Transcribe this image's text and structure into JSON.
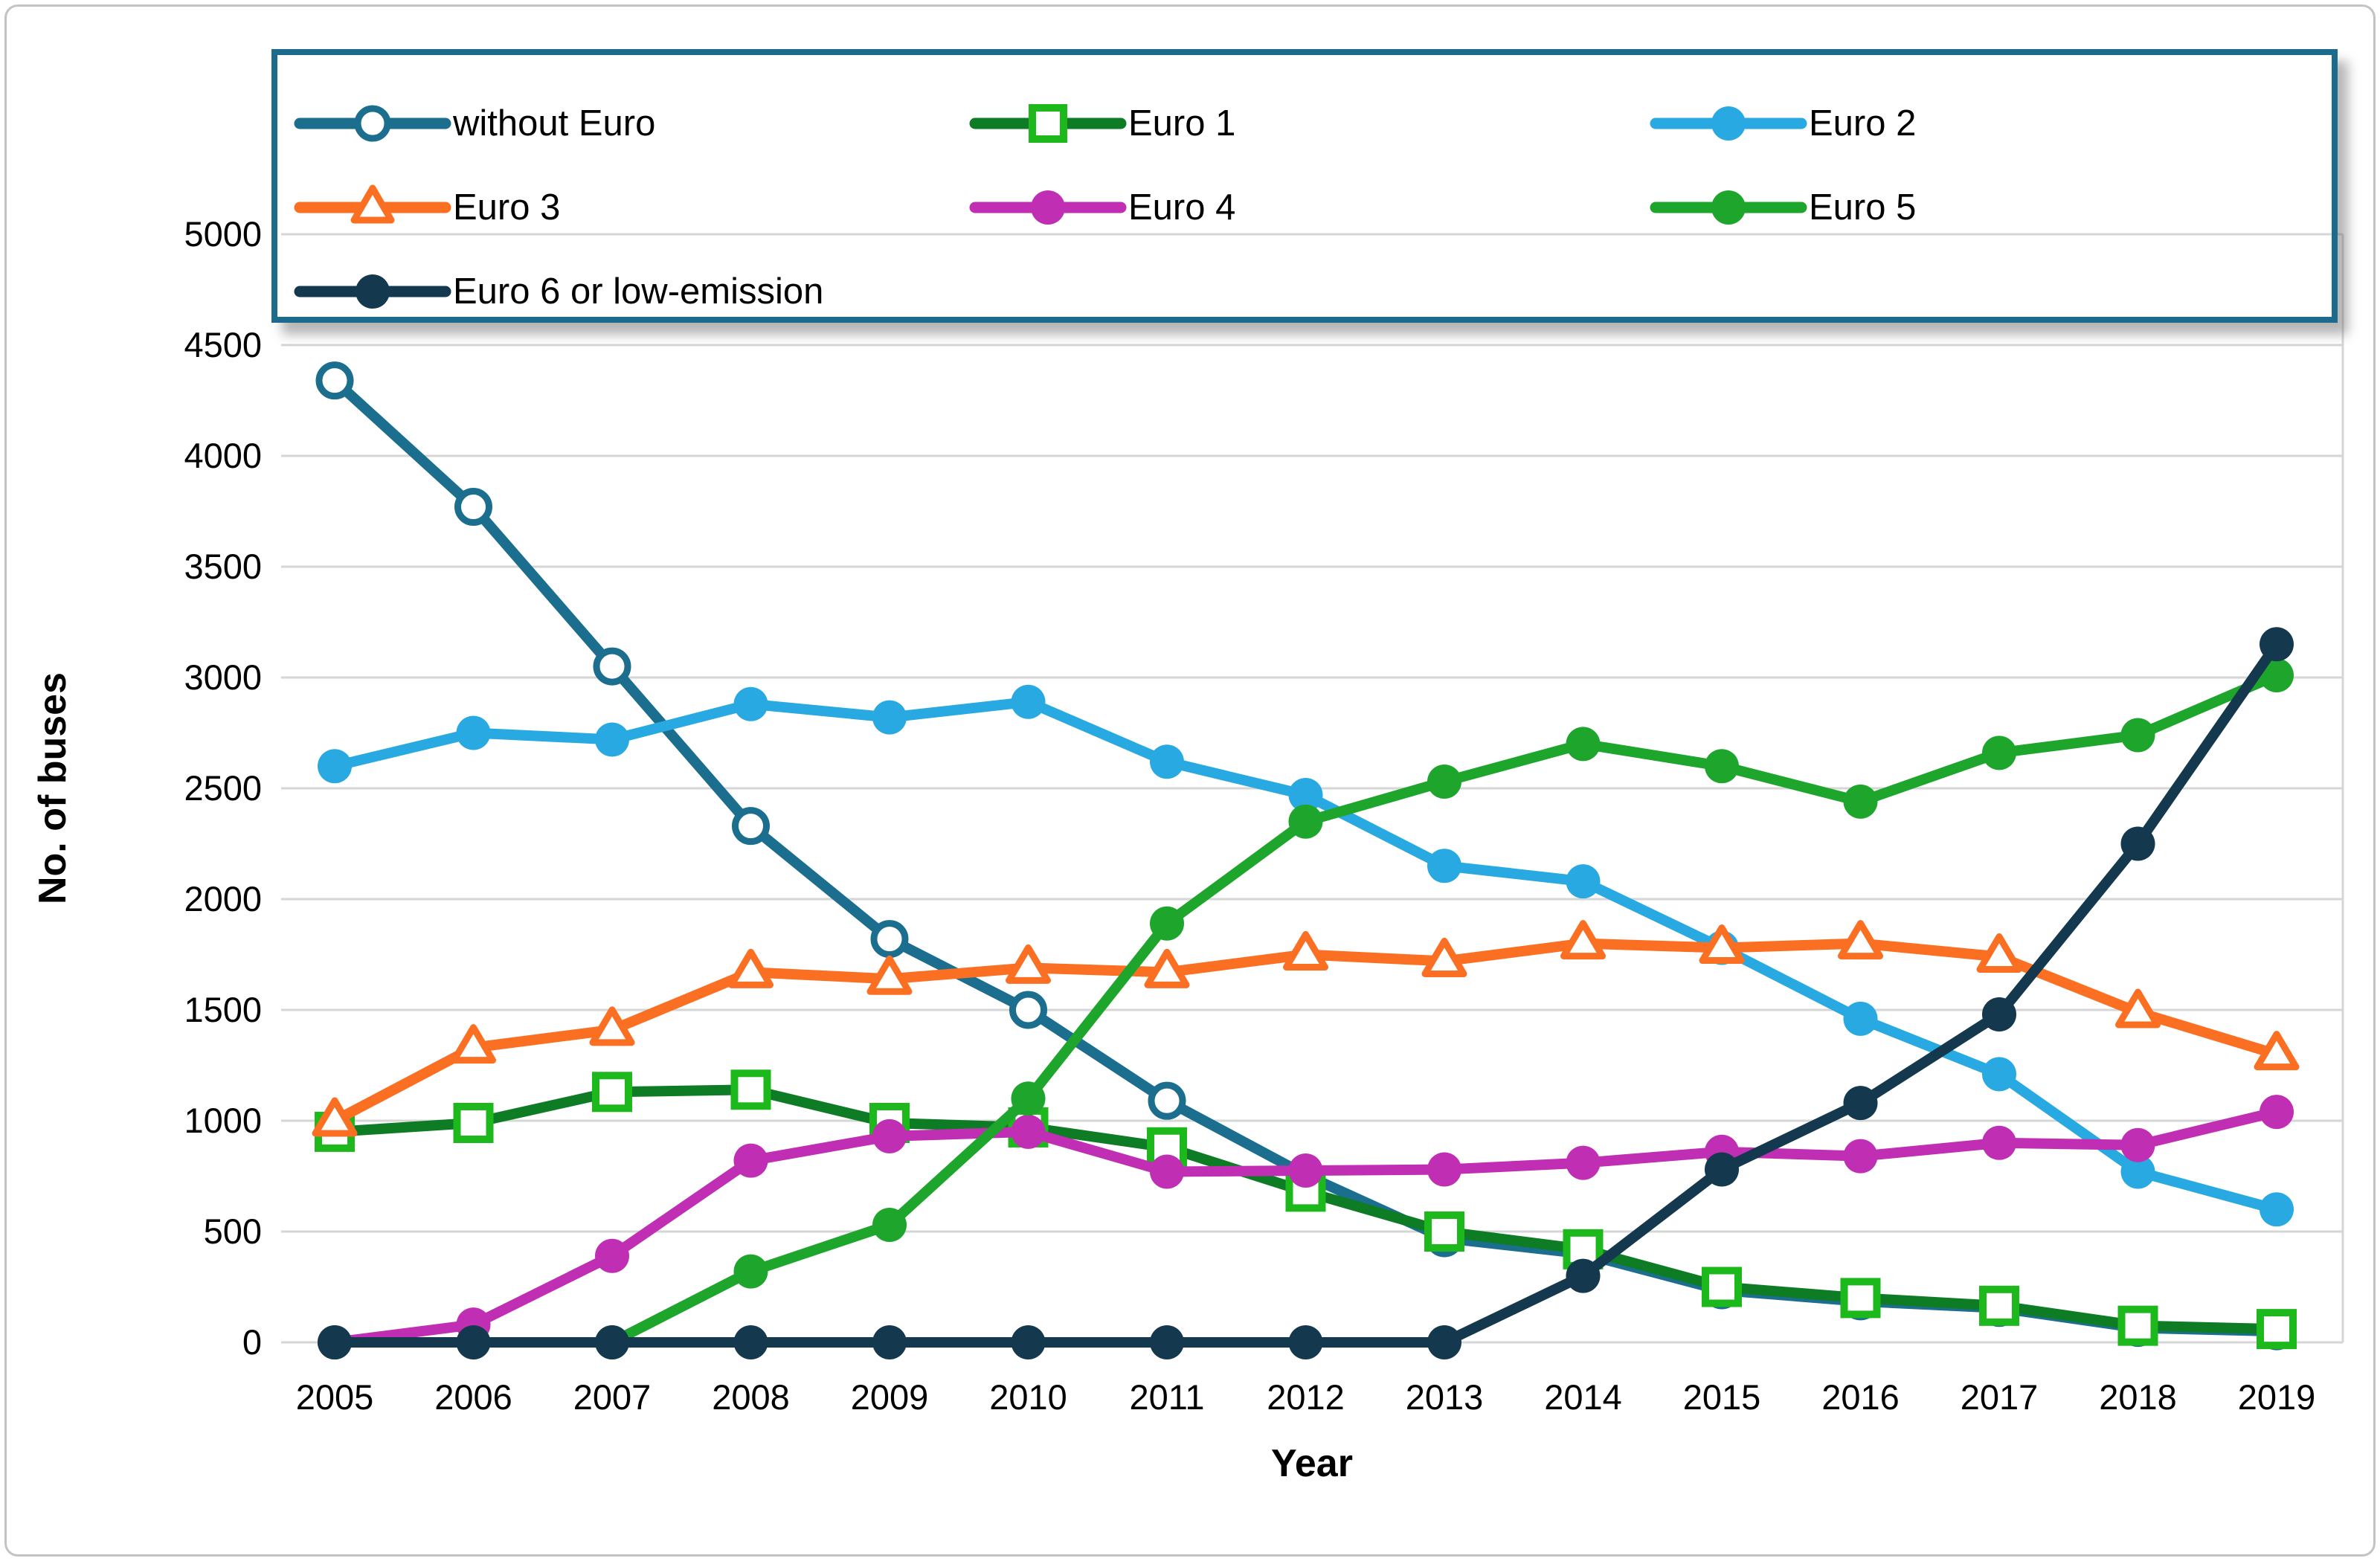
{
  "figure": {
    "type_note": "line chart figure",
    "background": "#ffffff",
    "frame_border_color": "#c3c3c3",
    "legend_border_color": "#1d6b8c",
    "gridline_color": "#d6d6d6"
  },
  "axes": {
    "y_title": "No. of buses",
    "x_title": "Year",
    "y_ticks": [
      0,
      500,
      1000,
      1500,
      2000,
      2500,
      3000,
      3500,
      4000,
      4500,
      5000
    ],
    "x_ticks": [
      "2005",
      "2006",
      "2007",
      "2008",
      "2009",
      "2010",
      "2011",
      "2012",
      "2013",
      "2014",
      "2015",
      "2016",
      "2017",
      "2018",
      "2019"
    ]
  },
  "chart_data": {
    "type": "line",
    "title": "",
    "xlabel": "Year",
    "ylabel": "No. of buses",
    "ylim": [
      0,
      5000
    ],
    "grid": "horizontal",
    "legend_position": "top-inside-bordered-box",
    "categories": [
      2005,
      2006,
      2007,
      2008,
      2009,
      2010,
      2011,
      2012,
      2013,
      2014,
      2015,
      2016,
      2017,
      2018,
      2019
    ],
    "series": [
      {
        "name": "without Euro",
        "color": "#1b6e8e",
        "marker": "circle-open",
        "marker_color": "#1b6e8e",
        "values": [
          4340,
          3770,
          3050,
          2330,
          1820,
          1500,
          1090,
          755,
          470,
          400,
          235,
          185,
          155,
          65,
          50
        ]
      },
      {
        "name": "Euro 1",
        "color": "#0e7c25",
        "marker": "square-open",
        "marker_color": "#1cb81c",
        "values": [
          950,
          990,
          1130,
          1140,
          990,
          970,
          880,
          680,
          500,
          420,
          250,
          200,
          165,
          75,
          60
        ]
      },
      {
        "name": "Euro 2",
        "color": "#29a9e1",
        "marker": "circle",
        "marker_color": "#29a9e1",
        "values": [
          2600,
          2750,
          2720,
          2880,
          2820,
          2890,
          2620,
          2470,
          2150,
          2080,
          1780,
          1460,
          1210,
          770,
          600
        ]
      },
      {
        "name": "Euro 3",
        "color": "#fb6f22",
        "marker": "triangle-open",
        "marker_color": "#fb6f22",
        "values": [
          1000,
          1330,
          1410,
          1670,
          1640,
          1690,
          1670,
          1750,
          1720,
          1800,
          1780,
          1800,
          1740,
          1490,
          1300
        ]
      },
      {
        "name": "Euro 4",
        "color": "#c02eb4",
        "marker": "circle",
        "marker_color": "#c02eb4",
        "values": [
          0,
          80,
          390,
          820,
          930,
          950,
          770,
          775,
          780,
          810,
          860,
          840,
          900,
          890,
          1040
        ]
      },
      {
        "name": "Euro 5",
        "color": "#1ea52c",
        "marker": "circle",
        "marker_color": "#1ea52c",
        "values": [
          0,
          0,
          0,
          320,
          530,
          1100,
          1890,
          2350,
          2530,
          2700,
          2600,
          2440,
          2660,
          2740,
          3010
        ]
      },
      {
        "name": "Euro 6 or low-emission",
        "color": "#14384d",
        "marker": "circle",
        "marker_color": "#14384d",
        "values": [
          0,
          0,
          0,
          0,
          0,
          0,
          0,
          0,
          0,
          300,
          780,
          1080,
          1480,
          2250,
          3150
        ]
      }
    ]
  }
}
